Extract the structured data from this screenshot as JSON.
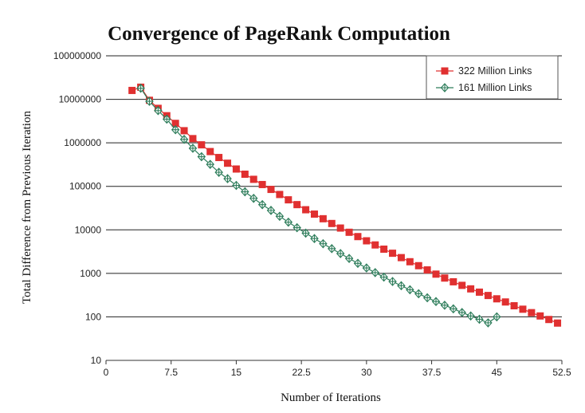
{
  "chart_data": {
    "type": "scatter",
    "title": "Convergence of PageRank Computation",
    "xlabel": "Number of Iterations",
    "ylabel": "Total Difference from Previous Iteration",
    "yscale": "log",
    "xlim": [
      0,
      52.5
    ],
    "ylim": [
      10,
      100000000
    ],
    "xticks": [
      "0",
      "7.5",
      "15",
      "22.5",
      "30",
      "37.5",
      "45",
      "52.5"
    ],
    "yticks": [
      "10",
      "100",
      "1000",
      "10000",
      "100000",
      "1000000",
      "10000000",
      "100000000"
    ],
    "grid": "horizontal",
    "legend_position": "top-right",
    "series": [
      {
        "name": "322 Million Links",
        "color": "#e03030",
        "marker": "square",
        "x": [
          3,
          4,
          5,
          6,
          7,
          8,
          9,
          10,
          11,
          12,
          13,
          14,
          15,
          16,
          17,
          18,
          19,
          20,
          21,
          22,
          23,
          24,
          25,
          26,
          27,
          28,
          29,
          30,
          31,
          32,
          33,
          34,
          35,
          36,
          37,
          38,
          39,
          40,
          41,
          42,
          43,
          44,
          45,
          46,
          47,
          48,
          49,
          50,
          51,
          52
        ],
        "y": [
          16000000,
          19000000,
          9500000,
          6200000,
          4200000,
          2800000,
          1900000,
          1250000,
          900000,
          630000,
          460000,
          340000,
          250000,
          190000,
          145000,
          110000,
          85000,
          65000,
          49000,
          38000,
          29000,
          23000,
          18000,
          14000,
          11000,
          8800,
          7000,
          5600,
          4500,
          3600,
          2900,
          2300,
          1850,
          1500,
          1200,
          960,
          780,
          640,
          530,
          440,
          370,
          310,
          260,
          220,
          180,
          150,
          125,
          105,
          87,
          72
        ]
      },
      {
        "name": "161 Million Links",
        "color": "#2e7d5b",
        "marker": "diamond-cross",
        "x": [
          4,
          5,
          6,
          7,
          8,
          9,
          10,
          11,
          12,
          13,
          14,
          15,
          16,
          17,
          18,
          19,
          20,
          21,
          22,
          23,
          24,
          25,
          26,
          27,
          28,
          29,
          30,
          31,
          32,
          33,
          34,
          35,
          36,
          37,
          38,
          39,
          40,
          41,
          42,
          43,
          44,
          45
        ],
        "y": [
          18000000,
          9000000,
          5500000,
          3500000,
          2000000,
          1200000,
          750000,
          480000,
          320000,
          210000,
          150000,
          105000,
          75000,
          53000,
          38000,
          28000,
          20500,
          15000,
          11200,
          8400,
          6300,
          4800,
          3700,
          2850,
          2200,
          1700,
          1330,
          1040,
          820,
          650,
          520,
          420,
          340,
          275,
          225,
          185,
          153,
          126,
          105,
          88,
          73,
          100
        ]
      }
    ]
  }
}
